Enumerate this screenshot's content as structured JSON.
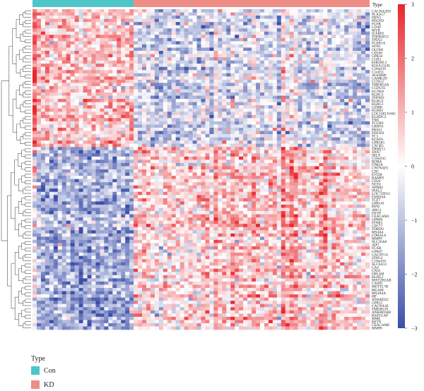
{
  "chart_data": {
    "type": "heatmap",
    "annotation": {
      "title": "Type",
      "groups": [
        {
          "name": "Con",
          "count": 24,
          "color": "#4ec5c9"
        },
        {
          "name": "KD",
          "count": 56,
          "color": "#ee8c86"
        }
      ]
    },
    "colorbar": {
      "ticks": [
        3,
        2,
        1,
        0,
        -1,
        -2,
        -3
      ],
      "range": [
        -3,
        3
      ],
      "colors": [
        "#3b4fa8",
        "#ffffff",
        "#e8262b"
      ]
    },
    "rows_upregulated_in_con": 43,
    "row_labels": [
      "CACNA2D3",
      "PLA2G7",
      "FBN3",
      "PDGFD",
      "FGFR",
      "COAT",
      "MYB",
      "IGFBP2",
      "TNFRSF21",
      "TPD52",
      "FCER1A",
      "SOX1",
      "OLFM1",
      "CD160",
      "GPR34",
      "CCR3",
      "KIR2DL3",
      "KIAA1324L",
      "C18orf19",
      "C1orf11",
      "ALKBH8",
      "CAMK2D",
      "CCNG2",
      "TMEM14A",
      "CCDC65",
      "KCNK6",
      "KLRC3",
      "ZNF683",
      "KLRC4",
      "KLRG1",
      "GZMK",
      "KLRB1",
      "LOC100131662",
      "KLHDC2",
      "TXK",
      "TCGR9",
      "LRRN3",
      "PRSS1",
      "DOCK9",
      "TC1",
      "KLRD1",
      "GPR183",
      "CXCR5",
      "TRMT11",
      "SNX7",
      "SELE",
      "C10orf35",
      "BORA",
      "ITM2A",
      "CNTNAP2",
      "CD5",
      "EVI2B",
      "RAMP3",
      "CD24",
      "NCF4",
      "APBB2",
      "INSL3",
      "LOC729915",
      "FAM20A",
      "TCF7",
      "GPR141",
      "BIN2",
      "ARG1",
      "DYSF",
      "CEACAM1",
      "GPR84",
      "FFAR3",
      "CD177",
      "TDRD9",
      "MS4A4",
      "LDHAL6",
      "MMP9",
      "SLC26A8",
      "AIF1",
      "FCAR",
      "GPR97",
      "GALNT14",
      "ST8G4",
      "C19orf59",
      "SLC6A13",
      "CA4",
      "UXS1",
      "OPLAH",
      "KLHL2",
      "HIST2H2AB",
      "CASP5",
      "METTL7B",
      "MGAM",
      "MS4A4A",
      "HP",
      "ANKRD22",
      "GPR12",
      "CACNA1E",
      "TMEM119",
      "ANKRD34B",
      "RAP1GAP",
      "MME",
      "RETN",
      "CEACAM8",
      "MMP8"
    ],
    "row_labels_note": "",
    "values_seed": 7
  }
}
